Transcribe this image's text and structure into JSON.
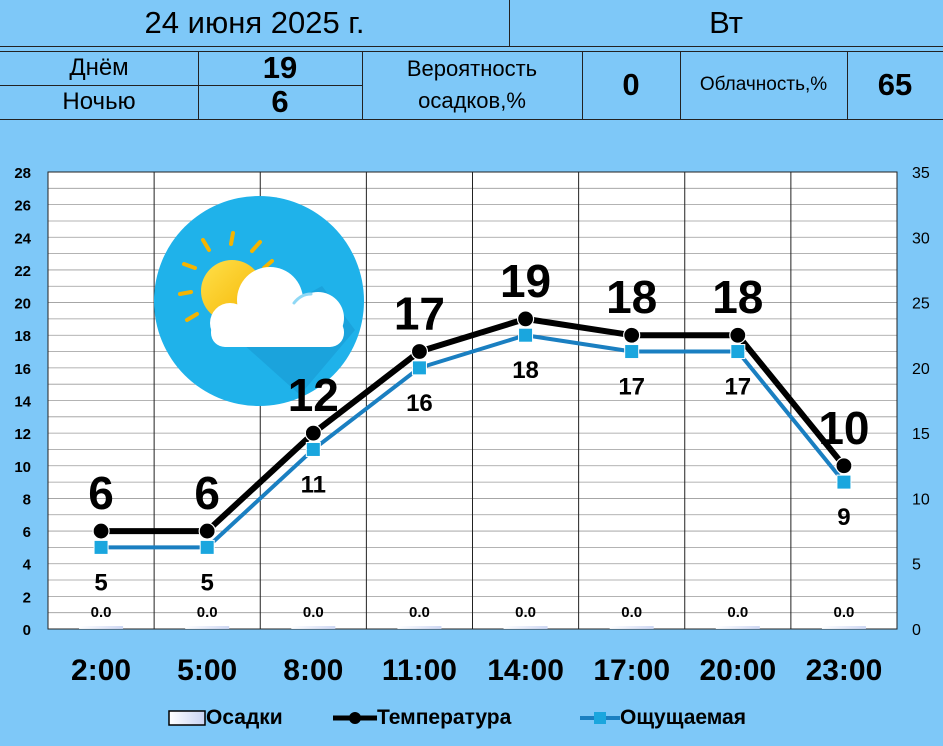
{
  "header": {
    "date": "24 июня 2025 г.",
    "weekday": "Вт",
    "day_label": "Днём",
    "day_value": "19",
    "night_label": "Ночью",
    "night_value": "6",
    "precip_label_1": "Вероятность",
    "precip_label_2": "осадков,%",
    "precip_value": "0",
    "cloud_label": "Облачность,%",
    "cloud_value": "65"
  },
  "icon": "partly-cloudy-icon",
  "colors": {
    "background": "#7ec8f8",
    "temperature": "#000000",
    "feels_like": "#1a7fc1",
    "feels_like_marker": "#1aa6de"
  },
  "chart_data": {
    "type": "line",
    "categories": [
      "2:00",
      "5:00",
      "8:00",
      "11:00",
      "14:00",
      "17:00",
      "20:00",
      "23:00"
    ],
    "y_left": {
      "range": [
        0,
        28
      ],
      "ticks": [
        0,
        2,
        4,
        6,
        8,
        10,
        12,
        14,
        16,
        18,
        20,
        22,
        24,
        26,
        28
      ]
    },
    "y_right": {
      "range": [
        0,
        35
      ],
      "ticks": [
        0,
        5,
        10,
        15,
        20,
        25,
        30,
        35
      ]
    },
    "grid": true,
    "legend_position": "bottom",
    "series": [
      {
        "name": "Осадки",
        "type": "bar",
        "axis": "right",
        "values": [
          0,
          0,
          0,
          0,
          0,
          0,
          0,
          0
        ],
        "labels": [
          "0.0",
          "0.0",
          "0.0",
          "0.0",
          "0.0",
          "0.0",
          "0.0",
          "0.0"
        ]
      },
      {
        "name": "Температура",
        "type": "line",
        "axis": "left",
        "values": [
          6,
          6,
          12,
          17,
          19,
          18,
          18,
          10
        ],
        "labels": [
          "6",
          "6",
          "12",
          "17",
          "19",
          "18",
          "18",
          "10"
        ]
      },
      {
        "name": "Ощущаемая",
        "type": "line",
        "axis": "left",
        "values": [
          5,
          5,
          11,
          16,
          18,
          17,
          17,
          9
        ],
        "labels": [
          "5",
          "5",
          "11",
          "16",
          "18",
          "17",
          "17",
          "9"
        ]
      }
    ]
  }
}
